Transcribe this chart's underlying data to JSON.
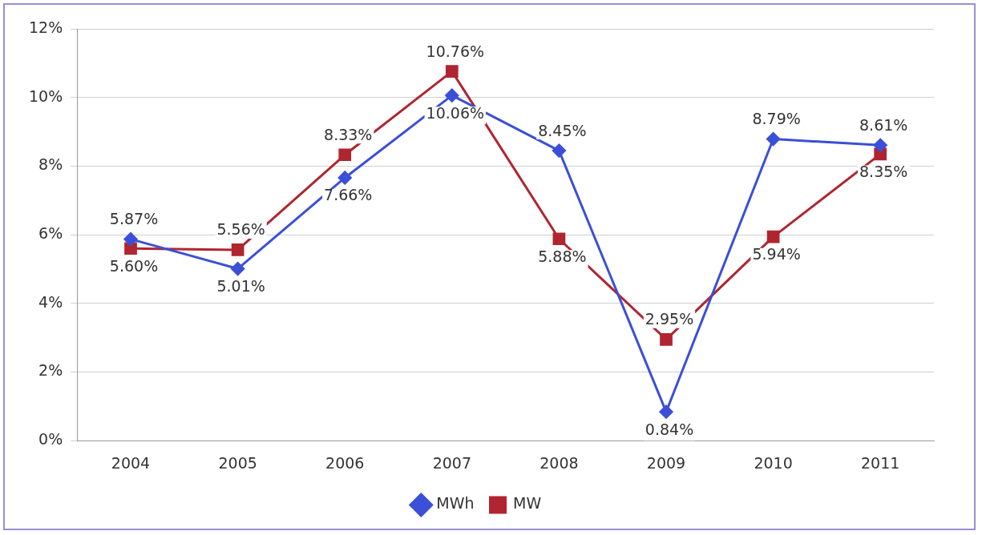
{
  "chart_data": {
    "type": "line",
    "categories": [
      "2004",
      "2005",
      "2006",
      "2007",
      "2008",
      "2009",
      "2010",
      "2011"
    ],
    "series": [
      {
        "name": "MWh",
        "color": "#3b4fd8",
        "marker": "diamond",
        "values": [
          5.87,
          5.01,
          7.66,
          10.06,
          8.45,
          0.84,
          8.79,
          8.61
        ],
        "value_labels": [
          "5.87%",
          "5.01%",
          "7.66%",
          "10.06%",
          "8.45%",
          "0.84%",
          "8.79%",
          "8.61%"
        ]
      },
      {
        "name": "MW",
        "color": "#b02530",
        "marker": "square",
        "values": [
          5.6,
          5.56,
          8.33,
          10.76,
          5.88,
          2.95,
          5.94,
          8.35
        ],
        "value_labels": [
          "5.60%",
          "5.56%",
          "8.33%",
          "10.76%",
          "5.88%",
          "2.95%",
          "5.94%",
          "8.35%"
        ]
      }
    ],
    "ylim": [
      0,
      12
    ],
    "yticks": [
      {
        "value": 0,
        "label": "0%"
      },
      {
        "value": 2,
        "label": "2%"
      },
      {
        "value": 4,
        "label": "4%"
      },
      {
        "value": 6,
        "label": "6%"
      },
      {
        "value": 8,
        "label": "8%"
      },
      {
        "value": 10,
        "label": "10%"
      },
      {
        "value": 12,
        "label": "12%"
      }
    ],
    "grid": "y",
    "legend": "bottom",
    "line_style": "solid"
  }
}
